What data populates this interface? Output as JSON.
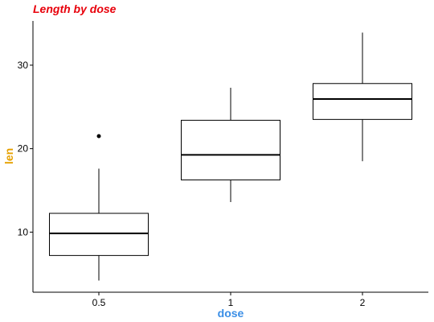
{
  "chart_data": {
    "type": "box",
    "title": "Length by dose",
    "xlabel": "dose",
    "ylabel": "len",
    "categories": [
      "0.5",
      "1",
      "2"
    ],
    "boxes": [
      {
        "category": "0.5",
        "whisker_low": 4.2,
        "q1": 7.2,
        "median": 9.85,
        "q3": 12.25,
        "whisker_high": 17.6,
        "outliers": [
          21.5
        ]
      },
      {
        "category": "1",
        "whisker_low": 13.6,
        "q1": 16.25,
        "median": 19.25,
        "q3": 23.4,
        "whisker_high": 27.3,
        "outliers": []
      },
      {
        "category": "2",
        "whisker_low": 18.5,
        "q1": 23.5,
        "median": 25.95,
        "q3": 27.8,
        "whisker_high": 33.9,
        "outliers": []
      }
    ],
    "ylim": [
      2.8,
      35.3
    ],
    "yticks": [
      10,
      20,
      30
    ],
    "grid": false,
    "colors": {
      "title": "#e8000b",
      "xlabel": "#3a8ee6",
      "ylabel": "#e6a100",
      "box": "#000000"
    }
  }
}
